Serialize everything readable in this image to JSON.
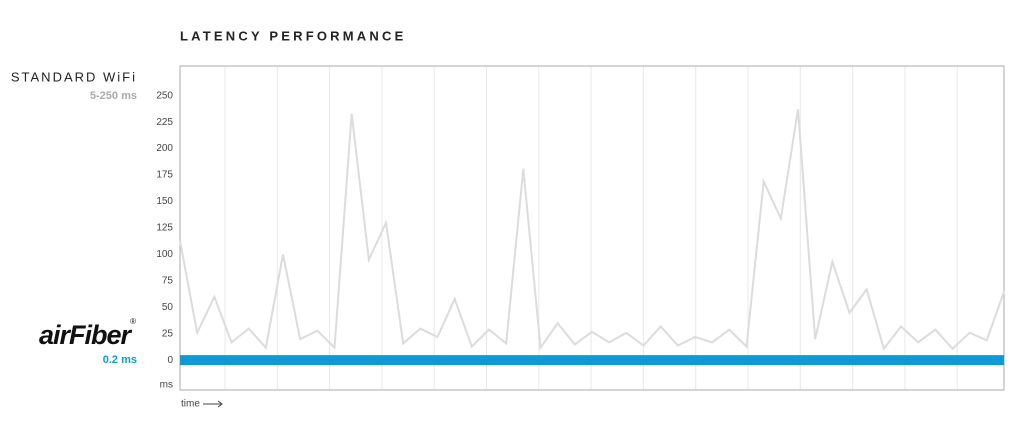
{
  "chart_data": {
    "type": "line",
    "title": "LATENCY PERFORMANCE",
    "y_label": "ms",
    "x_label": "time",
    "ylim": [
      -28,
      278
    ],
    "yticks": [
      0,
      25,
      50,
      75,
      100,
      125,
      150,
      175,
      200,
      225,
      250
    ],
    "series": [
      {
        "name": "STANDARD WiFi",
        "note": "5-250 ms",
        "color": "#dcdcdc",
        "values": [
          113,
          26,
          60,
          17,
          30,
          12,
          100,
          20,
          28,
          12,
          233,
          95,
          130,
          16,
          30,
          22,
          58,
          13,
          29,
          16,
          181,
          12,
          35,
          15,
          27,
          17,
          26,
          14,
          32,
          14,
          22,
          17,
          29,
          13,
          169,
          134,
          237,
          20,
          93,
          45,
          67,
          11,
          32,
          17,
          29,
          11,
          26,
          19,
          65
        ]
      },
      {
        "name": "airFiber",
        "mark": "®",
        "note": "0.2 ms",
        "color": "#0f9ad6",
        "values": [
          0.2,
          0.2,
          0.2,
          0.2,
          0.2,
          0.2,
          0.2,
          0.2,
          0.2,
          0.2,
          0.2,
          0.2,
          0.2,
          0.2,
          0.2,
          0.2,
          0.2,
          0.2,
          0.2,
          0.2,
          0.2,
          0.2,
          0.2,
          0.2,
          0.2,
          0.2,
          0.2,
          0.2,
          0.2,
          0.2,
          0.2,
          0.2,
          0.2,
          0.2,
          0.2,
          0.2,
          0.2,
          0.2,
          0.2,
          0.2,
          0.2,
          0.2,
          0.2,
          0.2,
          0.2,
          0.2,
          0.2,
          0.2,
          0.2
        ]
      }
    ]
  }
}
